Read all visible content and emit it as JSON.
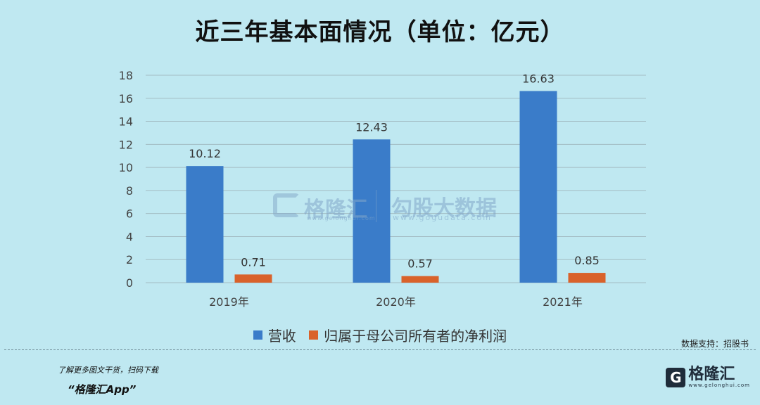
{
  "title": "近三年基本面情况（单位：亿元）",
  "chart_data": {
    "type": "bar",
    "categories": [
      "2019年",
      "2020年",
      "2021年"
    ],
    "series": [
      {
        "name": "营收",
        "values": [
          10.12,
          12.43,
          16.63
        ],
        "color": "#3a7cc9"
      },
      {
        "name": "归属于母公司所有者的净利润",
        "values": [
          0.71,
          0.57,
          0.85
        ],
        "color": "#d9622b"
      }
    ],
    "data_labels": [
      [
        "10.12",
        "12.43",
        "16.63"
      ],
      [
        "0.71",
        "0.57",
        "0.85"
      ]
    ],
    "yticks": [
      "0",
      "2",
      "4",
      "6",
      "8",
      "10",
      "12",
      "14",
      "16",
      "18"
    ],
    "ylim": [
      0,
      18
    ],
    "grid": true,
    "legend_position": "bottom"
  },
  "watermark": {
    "logo_text": "格隆汇",
    "logo_url": "www.gelonghui.com",
    "gogu_text": "勾股大数据",
    "gogu_url": "www.gogudata.com"
  },
  "source": "数据支持：招股书",
  "promo": {
    "line1": "了解更多图文干货，扫码下载",
    "line2": "“格隆汇App”"
  },
  "brand": {
    "icon_letter": "G",
    "name": "格隆汇",
    "url": "www.gelonghui.com"
  }
}
